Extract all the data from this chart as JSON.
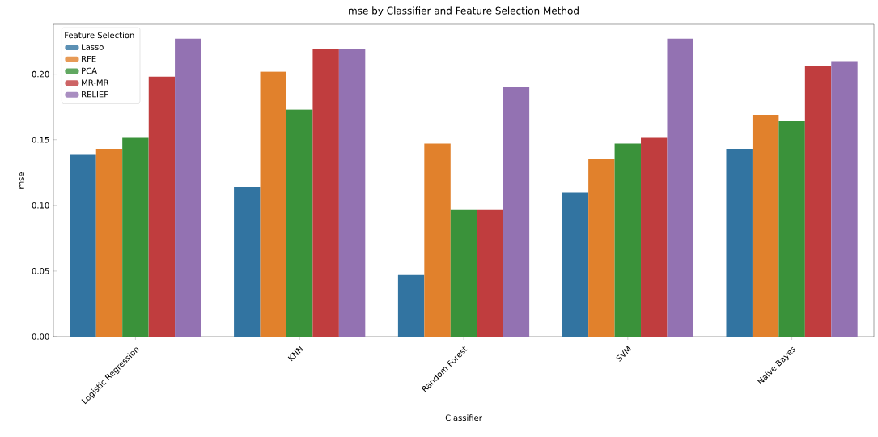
{
  "chart_data": {
    "type": "bar",
    "title": "mse by Classifier and Feature Selection Method",
    "xlabel": "Classifier",
    "ylabel": "mse",
    "legend_title": "Feature Selection",
    "legend": "top left",
    "categories": [
      "Logistic Regression",
      "KNN",
      "Random Forest",
      "SVM",
      "Naive Bayes"
    ],
    "series": [
      {
        "name": "Lasso",
        "color": "#3274a1",
        "values": [
          0.139,
          0.114,
          0.047,
          0.11,
          0.143
        ]
      },
      {
        "name": "RFE",
        "color": "#e1812c",
        "values": [
          0.143,
          0.202,
          0.147,
          0.135,
          0.169
        ]
      },
      {
        "name": "PCA",
        "color": "#3a923a",
        "values": [
          0.152,
          0.173,
          0.097,
          0.147,
          0.164
        ]
      },
      {
        "name": "MR-MR",
        "color": "#c03d3e",
        "values": [
          0.198,
          0.219,
          0.097,
          0.152,
          0.206
        ]
      },
      {
        "name": "RELIEF",
        "color": "#9372b2",
        "values": [
          0.227,
          0.219,
          0.19,
          0.227,
          0.21
        ]
      }
    ],
    "ylim": [
      0,
      0.238
    ],
    "yticks": [
      {
        "value": 0,
        "label": "0.00"
      },
      {
        "value": 0.05,
        "label": "0.05"
      },
      {
        "value": 0.1,
        "label": "0.10"
      },
      {
        "value": 0.15,
        "label": "0.15"
      },
      {
        "value": 0.2,
        "label": "0.20"
      }
    ]
  }
}
